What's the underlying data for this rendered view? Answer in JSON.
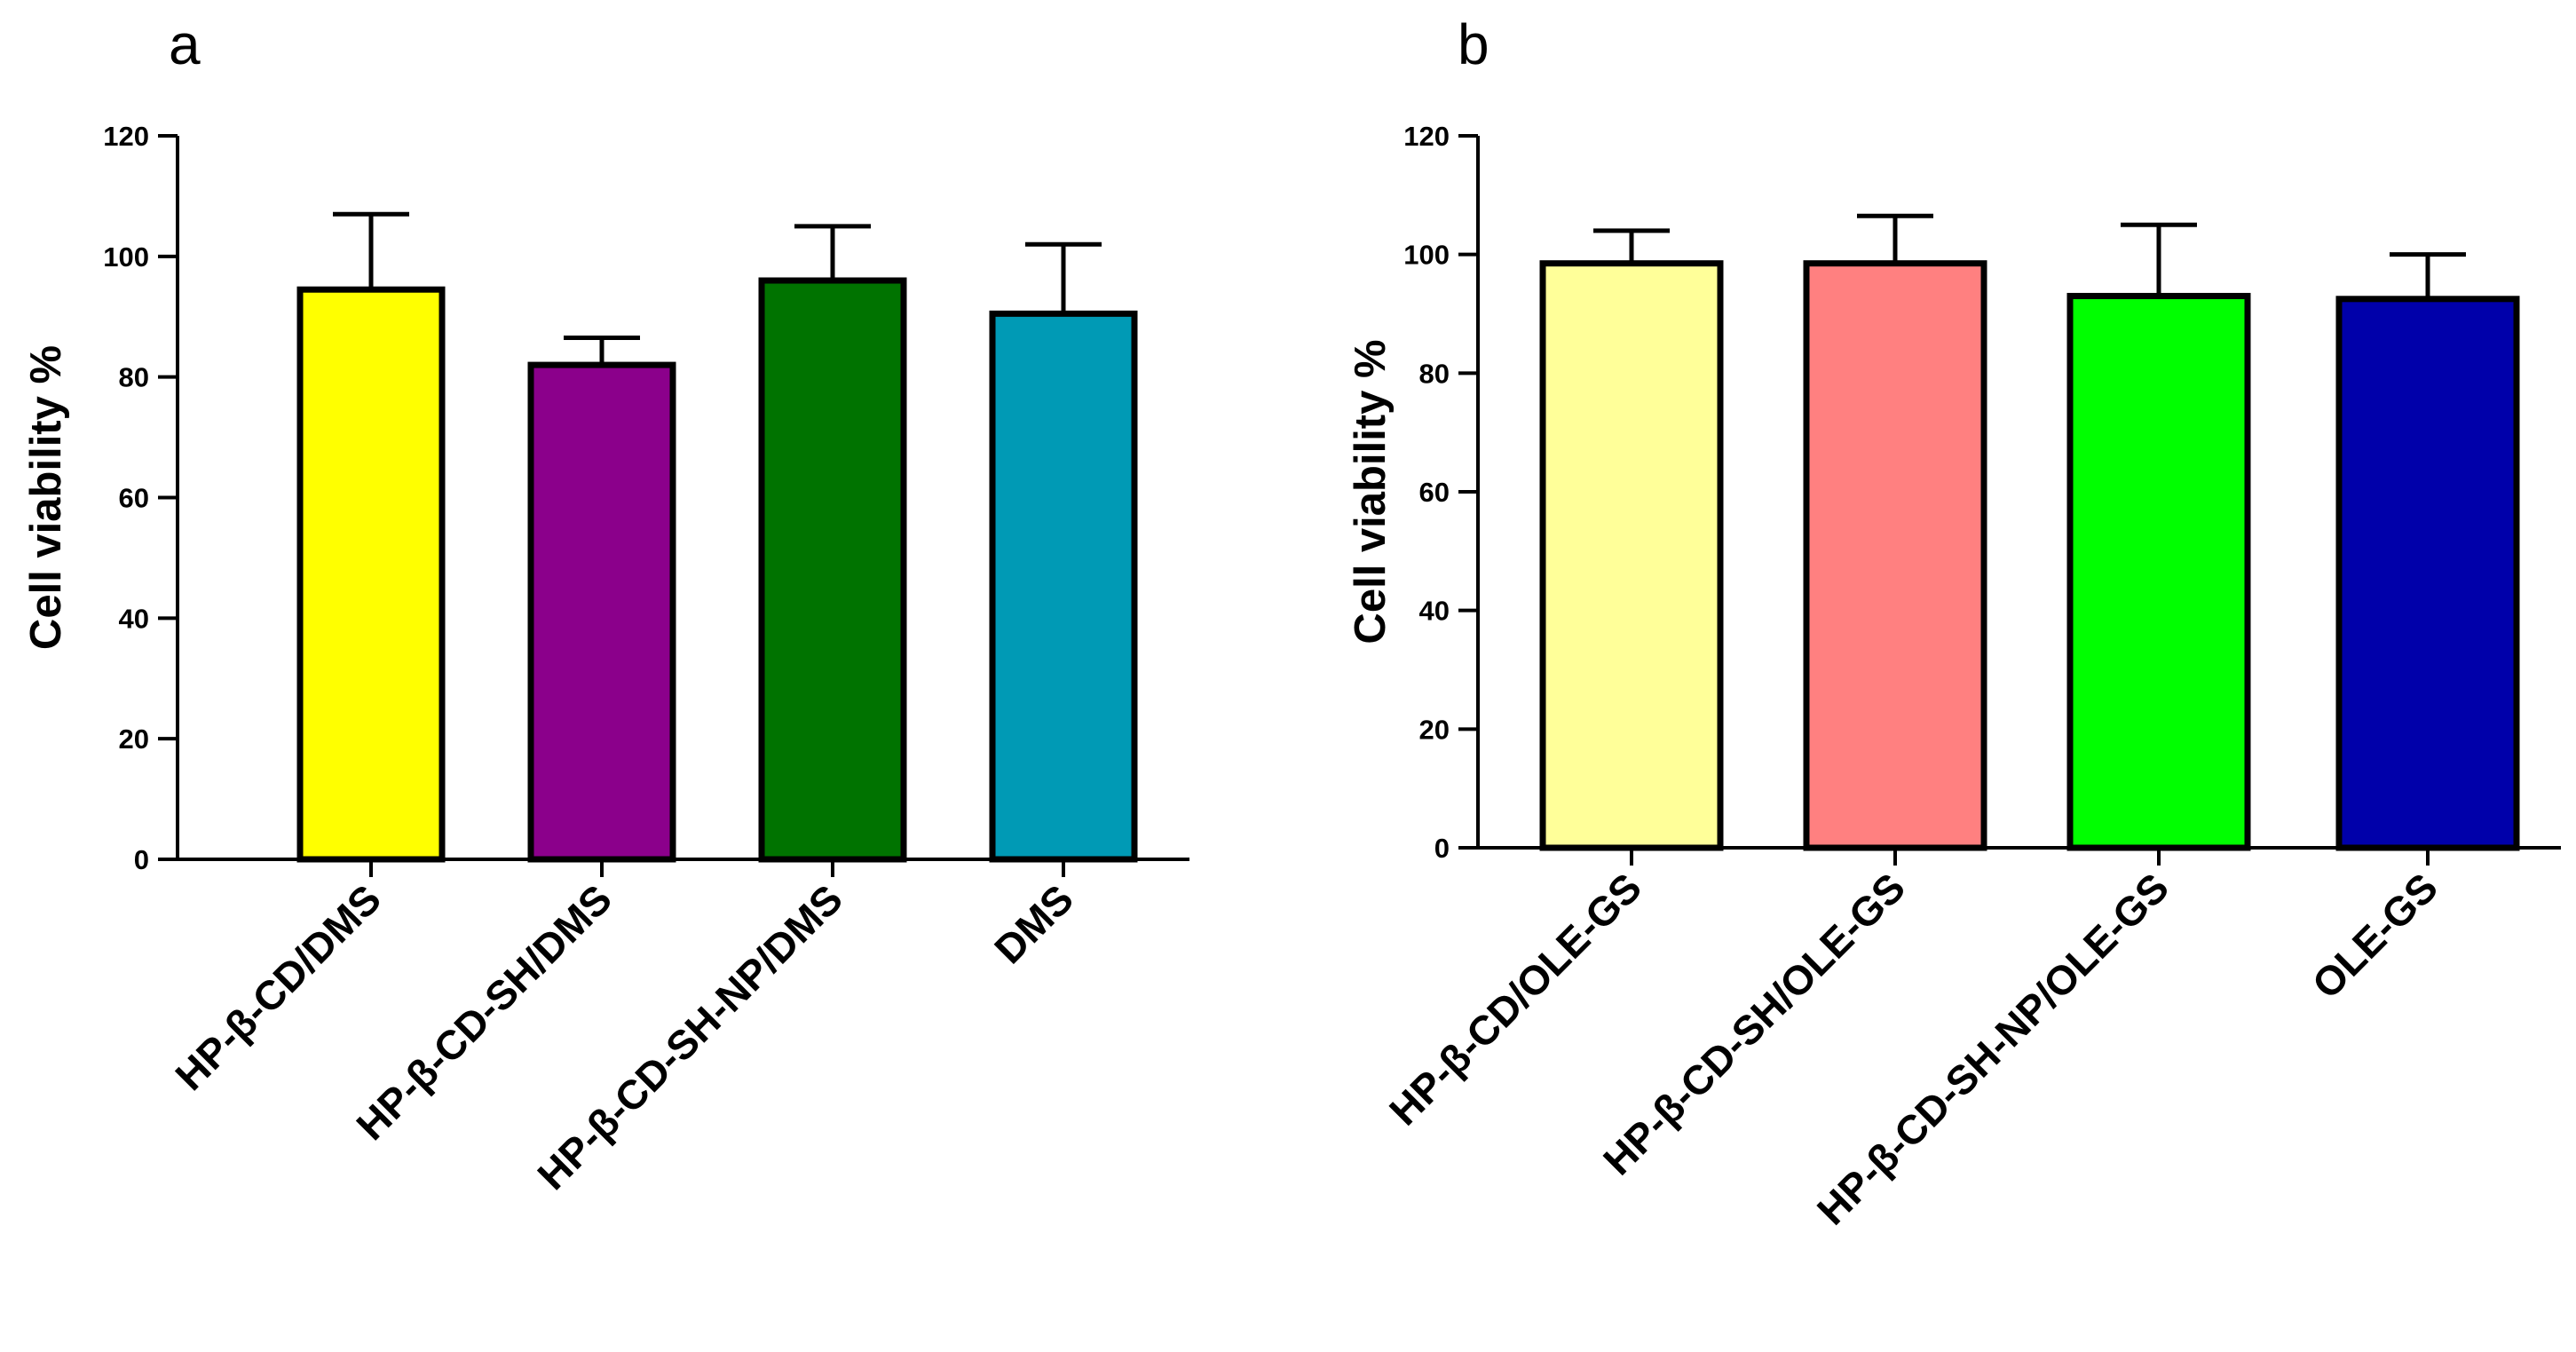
{
  "chart_data": [
    {
      "panel": "a",
      "type": "bar",
      "title": "",
      "xlabel": "",
      "ylabel": "Cell viability %",
      "ylim": [
        0,
        120
      ],
      "yticks": [
        0,
        20,
        40,
        60,
        80,
        100,
        120
      ],
      "categories": [
        "HP-β-CD/DMS",
        "HP-β-CD-SH/DMS",
        "HP-β-CD-SH-NP/DMS",
        "DMS"
      ],
      "values": [
        94.5,
        82,
        96,
        90.5
      ],
      "errors": [
        12.5,
        4.5,
        9,
        11.5
      ],
      "colors": [
        "#ffff00",
        "#8b008b",
        "#007300",
        "#009ab5"
      ],
      "grid": false,
      "legend": "none"
    },
    {
      "panel": "b",
      "type": "bar",
      "title": "",
      "xlabel": "",
      "ylabel": "Cell viability %",
      "ylim": [
        0,
        120
      ],
      "yticks": [
        0,
        20,
        40,
        60,
        80,
        100,
        120
      ],
      "categories": [
        "HP-β-CD/OLE-GS",
        "HP-β-CD-SH/OLE-GS",
        "HP-β-CD-SH-NP/OLE-GS",
        "OLE-GS"
      ],
      "values": [
        98.5,
        98.5,
        93,
        92.5
      ],
      "errors": [
        5.5,
        8,
        12,
        7.5
      ],
      "colors": [
        "#ffff99",
        "#ff8080",
        "#00ff00",
        "#0000aa"
      ],
      "grid": false,
      "legend": "none"
    }
  ]
}
